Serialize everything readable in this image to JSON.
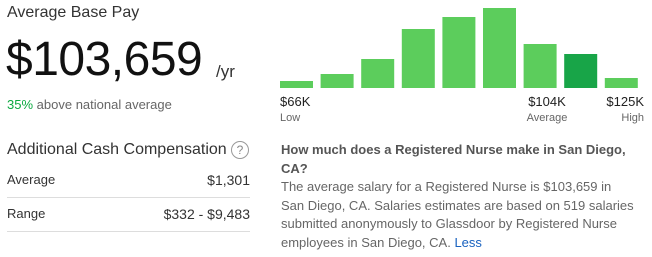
{
  "header": {
    "title": "Average Base Pay",
    "pay": "$103,659",
    "period": "/yr",
    "comparison_pct": "35%",
    "comparison_text": "above national average"
  },
  "histogram": {
    "type": "bar",
    "values": [
      7,
      14,
      29,
      59,
      71,
      80,
      44,
      34,
      10
    ],
    "color": "#5ccd5c",
    "highlight_color": "#18a548",
    "highlight_index": 7,
    "labels": [
      {
        "amount": "$66K",
        "caption": "Low"
      },
      {
        "amount": "$104K",
        "caption": "Average"
      },
      {
        "amount": "$125K",
        "caption": "High"
      }
    ]
  },
  "cash": {
    "title": "Additional Cash Compensation",
    "help": "?",
    "rows": [
      [
        "Average",
        "$1,301"
      ],
      [
        "Range",
        "$332 - $9,483"
      ]
    ]
  },
  "info": {
    "question": "How much does a Registered Nurse make in San Diego, CA?",
    "answer": "The average salary for a Registered Nurse is $103,659 in San Diego, CA. Salaries estimates are based on 519 salaries submitted anonymously to Glassdoor by Registered Nurse employees in San Diego, CA.",
    "link": "Less"
  }
}
